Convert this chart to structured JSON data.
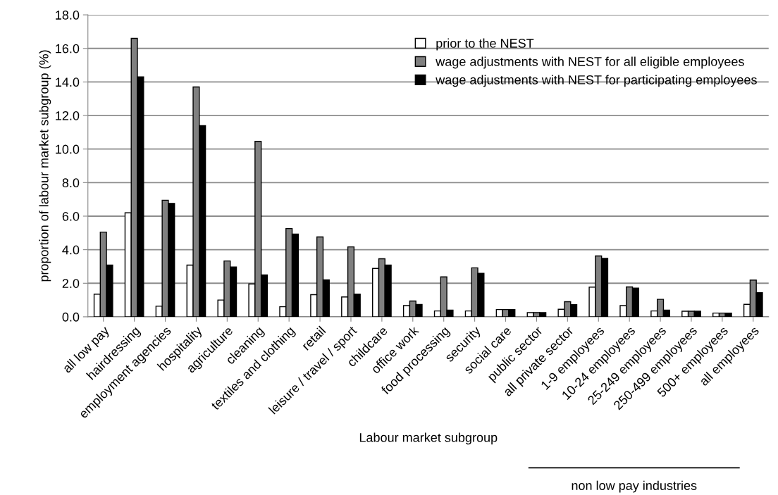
{
  "chart_data": {
    "type": "bar",
    "xlabel": "Labour market subgroup",
    "ylabel": "proportion of labour market subgroup (%)",
    "categories": [
      "all low pay",
      "hairdressing",
      "employment agencies",
      "hospitality",
      "agriculture",
      "cleaning",
      "textiles and clothing",
      "retail",
      "leisure / travel / sport",
      "childcare",
      "office work",
      "food processing",
      "security",
      "social care",
      "public sector",
      "all private sector",
      "1-9 employees",
      "10-24 employees",
      "25-249 employees",
      "250-499 employees",
      "500+ employees",
      "all employees"
    ],
    "series": [
      {
        "name": "prior to the NEST",
        "color": "#ffffff",
        "values": [
          1.35,
          6.2,
          0.63,
          3.08,
          1.0,
          1.96,
          0.6,
          1.32,
          1.18,
          2.88,
          0.67,
          0.35,
          0.35,
          0.43,
          0.25,
          0.45,
          1.77,
          0.67,
          0.35,
          0.33,
          0.22,
          0.74
        ]
      },
      {
        "name": "wage adjustments with NEST for all eligible employees",
        "color": "#808080",
        "values": [
          5.05,
          16.6,
          6.95,
          13.7,
          3.33,
          10.46,
          5.26,
          4.76,
          4.17,
          3.46,
          0.94,
          2.38,
          2.92,
          0.43,
          0.25,
          0.9,
          3.63,
          1.78,
          1.04,
          0.33,
          0.22,
          2.19
        ]
      },
      {
        "name": "wage adjustments with NEST for participating employees",
        "color": "#000000",
        "values": [
          3.08,
          14.3,
          6.76,
          11.4,
          2.97,
          2.5,
          4.93,
          2.2,
          1.35,
          3.08,
          0.73,
          0.4,
          2.59,
          0.43,
          0.25,
          0.72,
          3.48,
          1.71,
          0.4,
          0.33,
          0.22,
          1.44
        ]
      }
    ],
    "ylim": [
      0,
      18
    ],
    "yticks": [
      {
        "value": 0,
        "label": "0.0"
      },
      {
        "value": 2,
        "label": "2.0"
      },
      {
        "value": 4,
        "label": "4.0"
      },
      {
        "value": 6,
        "label": "6.0"
      },
      {
        "value": 8,
        "label": "8.0"
      },
      {
        "value": 10,
        "label": "10.0"
      },
      {
        "value": 12,
        "label": "12.0"
      },
      {
        "value": 14,
        "label": "14.0"
      },
      {
        "value": 16,
        "label": "16.0"
      },
      {
        "value": 18,
        "label": "18.0"
      }
    ],
    "grid": "y",
    "legend": "top right",
    "annotations": [
      "non low pay industries"
    ]
  }
}
